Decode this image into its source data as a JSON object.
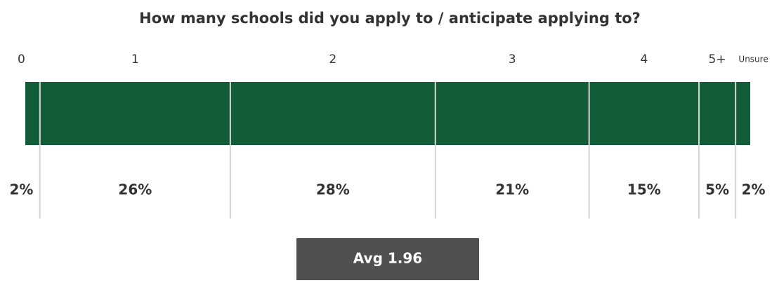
{
  "chart_data": {
    "type": "stacked-bar",
    "title": "How many schools did you apply to / anticipate applying to?",
    "categories": [
      "0",
      "1",
      "2",
      "3",
      "4",
      "5+",
      "Unsure"
    ],
    "values": [
      2,
      26,
      28,
      21,
      15,
      5,
      2
    ],
    "value_labels": [
      "2%",
      "26%",
      "28%",
      "21%",
      "15%",
      "5%",
      "2%"
    ],
    "color": "#135c38",
    "annotation": "Avg 1.96"
  }
}
